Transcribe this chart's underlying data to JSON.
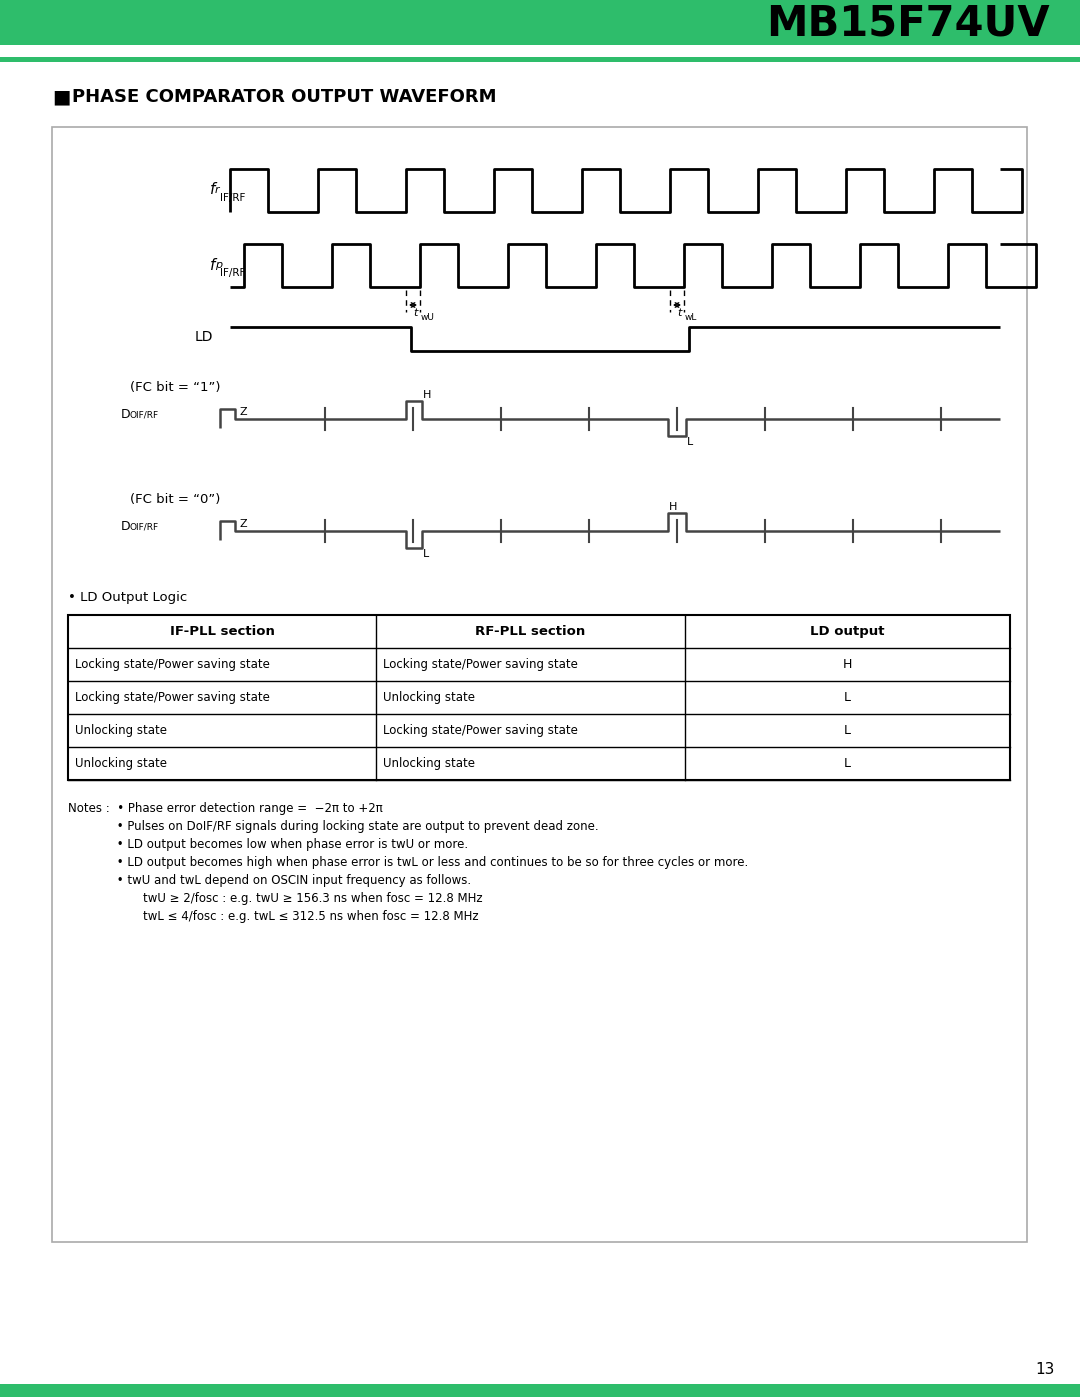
{
  "green_bar_color": "#2ebd6b",
  "title_text": "MB15F74UV",
  "bg_color": "#ffffff",
  "waveform_color": "#000000",
  "table_data": [
    [
      "Locking state/Power saving state",
      "Locking state/Power saving state",
      "H"
    ],
    [
      "Locking state/Power saving state",
      "Unlocking state",
      "L"
    ],
    [
      "Unlocking state",
      "Locking state/Power saving state",
      "L"
    ],
    [
      "Unlocking state",
      "Unlocking state",
      "L"
    ]
  ],
  "table_headers": [
    "IF-PLL section",
    "RF-PLL section",
    "LD output"
  ]
}
